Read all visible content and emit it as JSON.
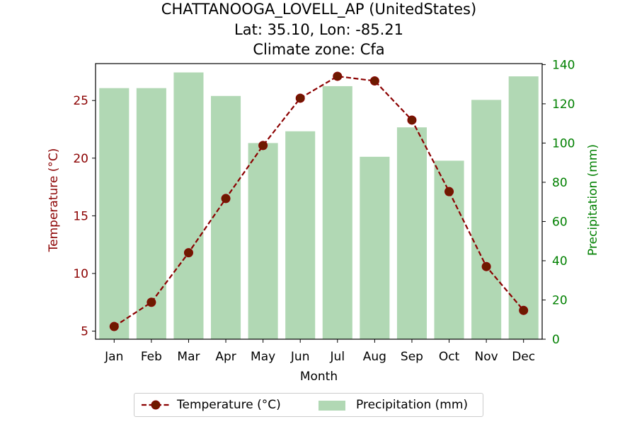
{
  "titles": {
    "line1": "CHATTANOOGA_LOVELL_AP (UnitedStates)",
    "line2": "Lat: 35.10, Lon: -85.21",
    "line3": "Climate zone: Cfa"
  },
  "legend": {
    "temperature": "Temperature (°C)",
    "precipitation": "Precipitation (mm)"
  },
  "colors": {
    "temperature": "#8b0000",
    "precipitation": "#b1d8b4",
    "precip_axis": "#008000",
    "temp_axis": "#8b0000",
    "marker_fill": "#6e1a00"
  },
  "chart_data": {
    "type": "bar+line",
    "title": "CHATTANOOGA_LOVELL_AP (UnitedStates)\nLat: 35.10, Lon: -85.21\nClimate zone: Cfa",
    "xlabel": "Month",
    "categories": [
      "Jan",
      "Feb",
      "Mar",
      "Apr",
      "May",
      "Jun",
      "Jul",
      "Aug",
      "Sep",
      "Oct",
      "Nov",
      "Dec"
    ],
    "series": [
      {
        "name": "Temperature (°C)",
        "type": "line",
        "axis": "left",
        "style": "dashed with circle markers",
        "values": [
          5.4,
          7.5,
          11.8,
          16.5,
          21.1,
          25.2,
          27.1,
          26.7,
          23.3,
          17.1,
          10.6,
          6.8
        ]
      },
      {
        "name": "Precipitation (mm)",
        "type": "bar",
        "axis": "right",
        "values": [
          128,
          128,
          136,
          124,
          100,
          106,
          129,
          93,
          108,
          91,
          122,
          134
        ]
      }
    ],
    "y_left": {
      "label": "Temperature (°C)",
      "lim": [
        4.3,
        28.2
      ],
      "ticks": [
        5,
        10,
        15,
        20,
        25
      ]
    },
    "y_right": {
      "label": "Precipitation (mm)",
      "lim": [
        0,
        140.5
      ],
      "ticks": [
        0,
        20,
        40,
        60,
        80,
        100,
        120,
        140
      ]
    },
    "grid": false,
    "legend_position": "bottom-center"
  }
}
